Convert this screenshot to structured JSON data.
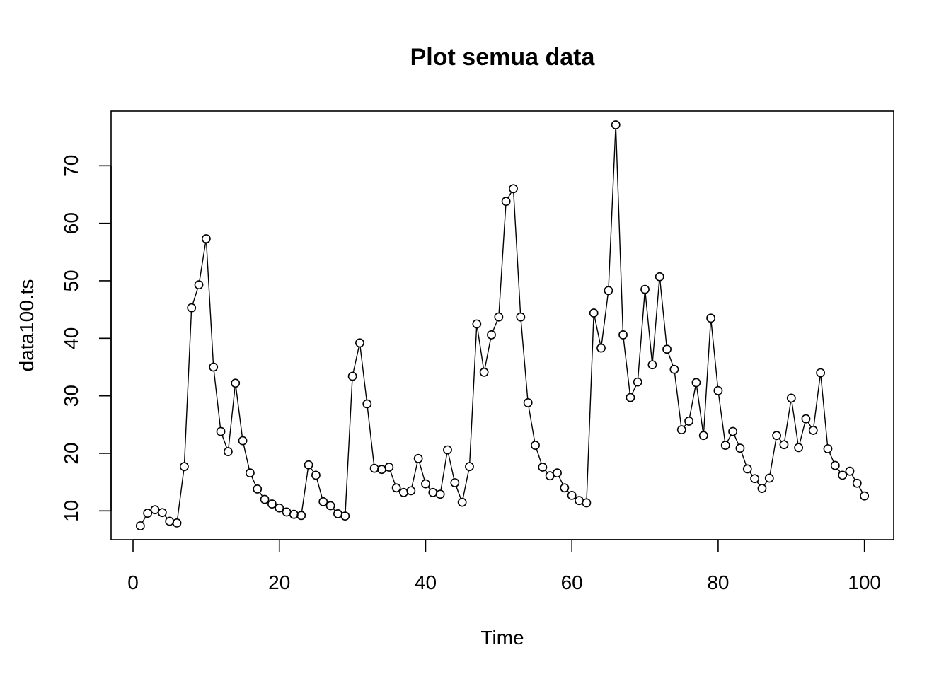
{
  "chart_data": {
    "type": "line",
    "title": "Plot semua data",
    "xlabel": "Time",
    "ylabel": "data100.ts",
    "xlim": [
      -3,
      104
    ],
    "ylim": [
      5,
      79.5
    ],
    "xticks": [
      0,
      20,
      40,
      60,
      80,
      100
    ],
    "yticks": [
      10,
      20,
      30,
      40,
      50,
      60,
      70
    ],
    "markers": "open-circle",
    "grid": false,
    "legend": "none",
    "series": [
      {
        "x": [
          1,
          2,
          3,
          4,
          5,
          6,
          7,
          8,
          9,
          10,
          11,
          12,
          13,
          14,
          15,
          16,
          17,
          18,
          19,
          20,
          21,
          22,
          23,
          24,
          25,
          26,
          27,
          28,
          29,
          30,
          31,
          32,
          33,
          34,
          35,
          36,
          37,
          38,
          39,
          40,
          41,
          42,
          43,
          44,
          45,
          46,
          47,
          48,
          49,
          50,
          51,
          52,
          53,
          54,
          55,
          56,
          57,
          58,
          59,
          60,
          61,
          62,
          63,
          64,
          65,
          66,
          67,
          68,
          69,
          70,
          71,
          72,
          73,
          74,
          75,
          76,
          77,
          78,
          79,
          80,
          81,
          82,
          83,
          84,
          85,
          86,
          87,
          88,
          89,
          90,
          91,
          92,
          93,
          94,
          95,
          96,
          97,
          98,
          99,
          100
        ],
        "y": [
          7.4,
          9.6,
          10.2,
          9.7,
          8.2,
          7.9,
          17.7,
          45.3,
          49.3,
          57.3,
          35.0,
          23.8,
          20.3,
          32.2,
          22.2,
          16.6,
          13.8,
          12.0,
          11.2,
          10.5,
          9.8,
          9.4,
          9.2,
          18.0,
          16.2,
          11.6,
          10.9,
          9.5,
          9.1,
          33.4,
          39.2,
          28.6,
          17.4,
          17.2,
          17.6,
          14.0,
          13.2,
          13.5,
          19.1,
          14.7,
          13.2,
          12.9,
          20.6,
          14.9,
          11.5,
          17.7,
          42.5,
          34.1,
          40.6,
          43.7,
          63.8,
          66.0,
          43.7,
          28.8,
          21.4,
          17.6,
          16.1,
          16.6,
          14.0,
          12.7,
          11.8,
          11.4,
          44.4,
          38.3,
          48.3,
          77.1,
          40.6,
          29.7,
          32.4,
          48.5,
          35.4,
          50.7,
          38.1,
          34.6,
          24.1,
          25.6,
          32.3,
          23.1,
          43.5,
          30.9,
          21.4,
          23.8,
          20.9,
          17.3,
          15.6,
          13.9,
          15.7,
          23.1,
          21.5,
          29.6,
          21.0,
          26.0,
          24.0,
          34.0,
          20.8,
          17.9,
          16.2,
          16.9,
          14.8,
          12.6
        ]
      }
    ]
  }
}
